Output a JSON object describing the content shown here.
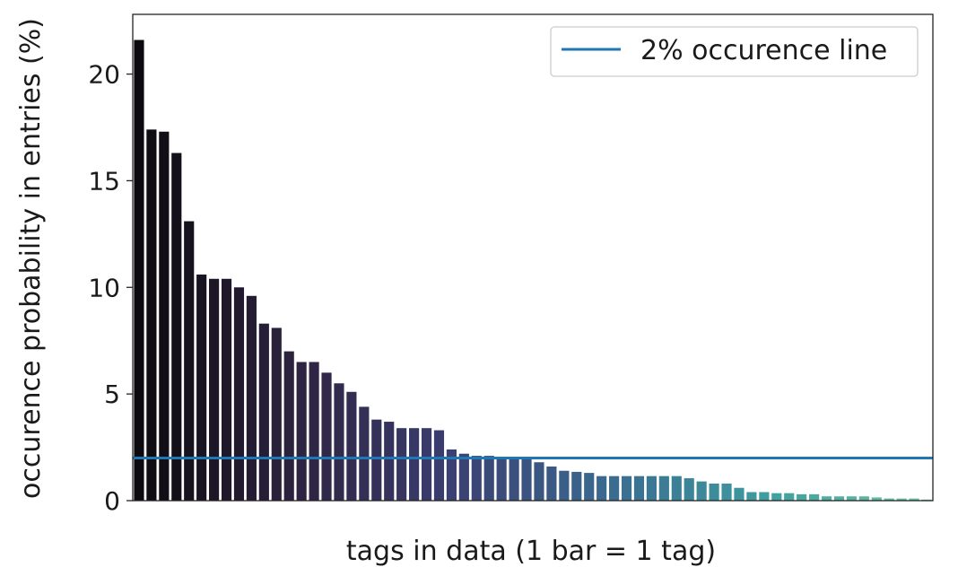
{
  "chart_data": {
    "type": "bar",
    "title": "",
    "xlabel": "tags in data (1 bar = 1 tag)",
    "ylabel": "occurence probability in entries (%)",
    "ylim": [
      0,
      22.8
    ],
    "yticks": [
      0,
      5,
      10,
      15,
      20
    ],
    "xticks_visible": false,
    "grid": false,
    "legend": {
      "placement": "top-right",
      "entries": [
        "2% occurence line"
      ]
    },
    "series": [
      {
        "values": [
          21.6,
          17.4,
          17.3,
          16.3,
          13.1,
          10.6,
          10.4,
          10.4,
          10.0,
          9.6,
          8.3,
          8.1,
          7.0,
          6.5,
          6.5,
          6.0,
          5.5,
          5.1,
          4.4,
          3.8,
          3.7,
          3.4,
          3.4,
          3.4,
          3.3,
          2.4,
          2.2,
          2.1,
          2.1,
          2.0,
          2.0,
          2.0,
          1.8,
          1.6,
          1.4,
          1.35,
          1.3,
          1.15,
          1.15,
          1.15,
          1.15,
          1.15,
          1.15,
          1.15,
          1.05,
          0.9,
          0.8,
          0.8,
          0.6,
          0.4,
          0.4,
          0.35,
          0.35,
          0.3,
          0.3,
          0.2,
          0.2,
          0.2,
          0.2,
          0.15,
          0.1,
          0.1,
          0.1,
          0.05
        ]
      }
    ],
    "reference_lines": [
      {
        "name": "2% occurence line",
        "y": 2,
        "color": "#1f77b4"
      }
    ],
    "colormap": [
      "#0c0a0e",
      "#2d2340",
      "#3b3f72",
      "#3a6b90",
      "#3f9ea0",
      "#6cc3a1"
    ]
  }
}
